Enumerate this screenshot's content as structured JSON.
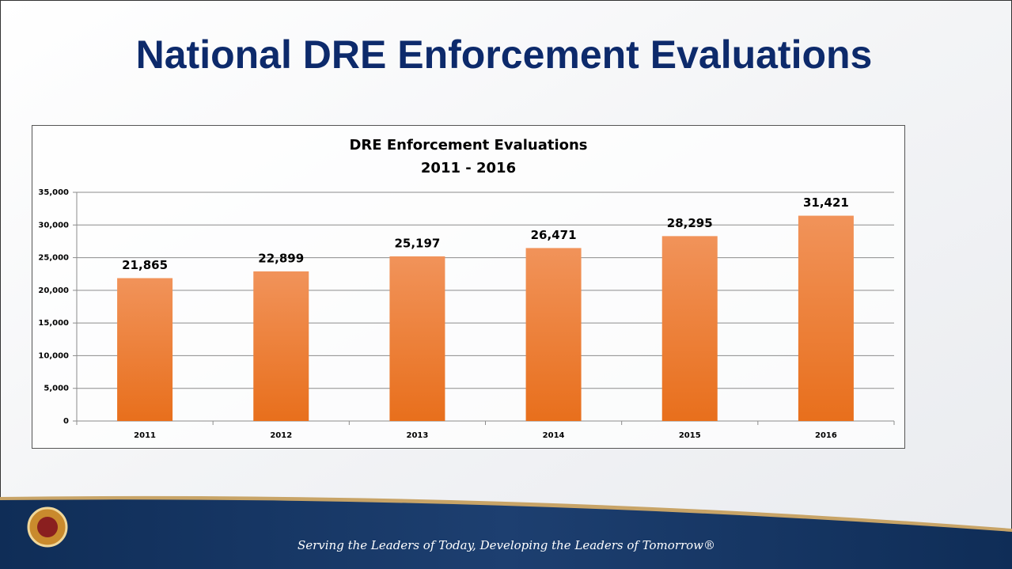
{
  "slide": {
    "title": "National DRE Enforcement Evaluations",
    "footer": "Serving the Leaders of Today, Developing the Leaders of Tomorrow®"
  },
  "chart_data": {
    "type": "bar",
    "title": "DRE Enforcement Evaluations",
    "subtitle": "2011 - 2016",
    "categories": [
      "2011",
      "2012",
      "2013",
      "2014",
      "2015",
      "2016"
    ],
    "values": [
      21865,
      22899,
      25197,
      26471,
      28295,
      31421
    ],
    "value_labels": [
      "21,865",
      "22,899",
      "25,197",
      "26,471",
      "28,295",
      "31,421"
    ],
    "color": "#ec7a2a",
    "ylim": [
      0,
      35000
    ],
    "yticks": [
      0,
      {
        "value": 5000,
        "label": "5,000"
      },
      {
        "value": 10000,
        "label": "10,000"
      },
      {
        "value": 15000,
        "label": "15,000"
      },
      {
        "value": 20000,
        "label": "20,000"
      },
      {
        "value": 25000,
        "label": "25,000"
      },
      {
        "value": 30000,
        "label": "30,000"
      },
      {
        "value": 35000,
        "label": "35,000"
      }
    ],
    "grid": true
  }
}
